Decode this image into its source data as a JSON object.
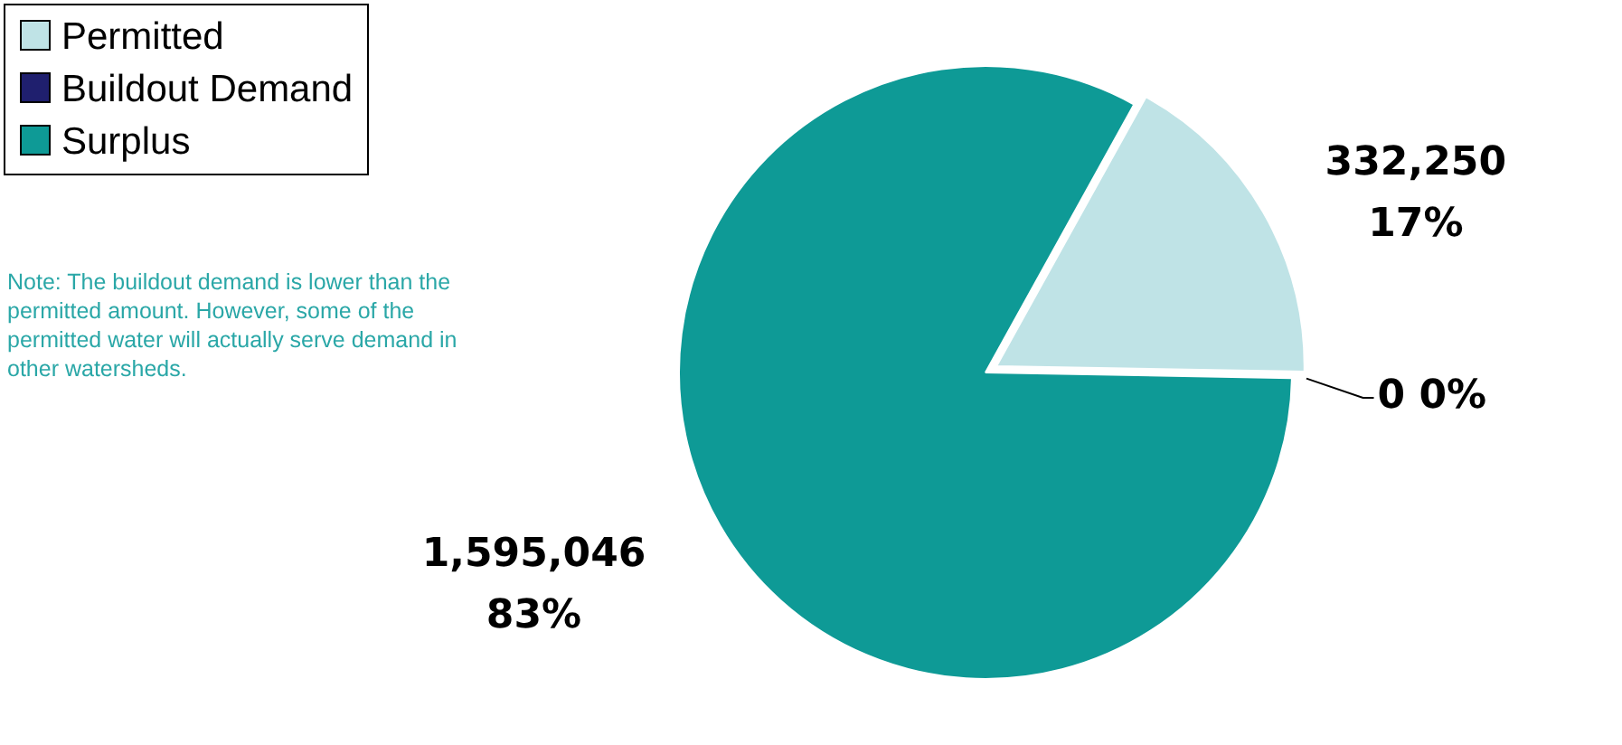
{
  "chart_data": {
    "type": "pie",
    "categories": [
      "Permitted",
      "Buildout Demand",
      "Surplus"
    ],
    "values": [
      332250,
      0,
      1595046
    ],
    "colors": [
      "#bfe3e6",
      "#1f1f6e",
      "#0e9a96"
    ],
    "value_labels": [
      "332,250\n17%",
      "0 0%",
      "1,595,046\n83%"
    ],
    "legend": "top left",
    "annotations": [
      "Note:  The buildout demand is lower than the permitted amount.  However, some of the permitted water will actually serve demand in other watersheds."
    ]
  }
}
